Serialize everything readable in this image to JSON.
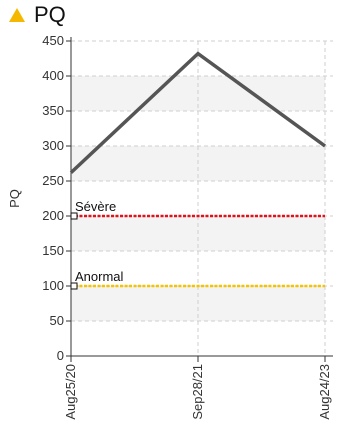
{
  "title": "PQ",
  "icons": {
    "title_icon": "warning-triangle-icon",
    "title_icon_color": "#f5b800"
  },
  "chart_data": {
    "type": "line",
    "title": "PQ",
    "ylabel": "PQ",
    "xlabel": "",
    "ylim": [
      0,
      450
    ],
    "yticks": [
      0,
      50,
      100,
      150,
      200,
      250,
      300,
      350,
      400,
      450
    ],
    "categories": [
      "Aug25/20",
      "Sep28/21",
      "Aug24/23"
    ],
    "series": [
      {
        "values": [
          262,
          432,
          300
        ],
        "color": "#555555"
      }
    ],
    "thresholds": [
      {
        "label": "Sévère",
        "value": 200,
        "color": "#e0121b"
      },
      {
        "label": "Anormal",
        "value": 100,
        "color": "#f5c400"
      }
    ],
    "grid": true
  }
}
